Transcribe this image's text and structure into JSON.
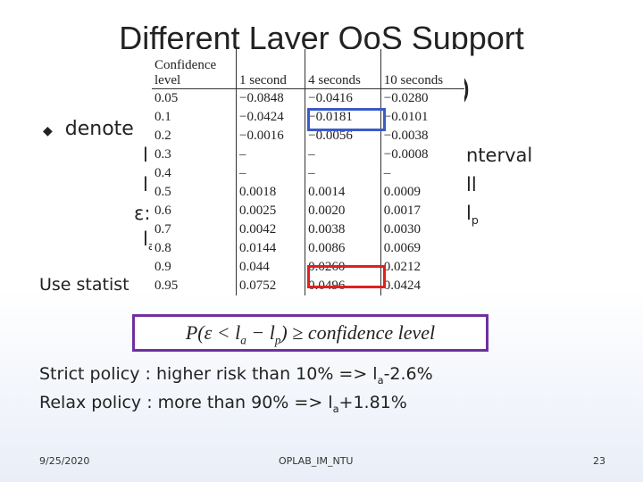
{
  "slide": {
    "title": "Different Layer QoS Support",
    "title_tail": ")",
    "bullet": "denote",
    "fragments": [
      "l",
      "nterval",
      "l",
      "ll",
      "ε:",
      "l",
      "p",
      "l",
      "a"
    ],
    "use_text": "Use statist",
    "table": {
      "header": [
        "Confidence level",
        "1 second",
        "4 seconds",
        "10 seconds"
      ],
      "rows": [
        [
          "0.05",
          "−0.0848",
          "−0.0416",
          "−0.0280"
        ],
        [
          "0.1",
          "−0.0424",
          "−0.0181",
          "−0.0101"
        ],
        [
          "0.2",
          "−0.0016",
          "−0.0056",
          "−0.0038"
        ],
        [
          "0.3",
          "–",
          "–",
          "−0.0008"
        ],
        [
          "0.4",
          "–",
          "–",
          "–"
        ],
        [
          "0.5",
          "0.0018",
          "0.0014",
          "0.0009"
        ],
        [
          "0.6",
          "0.0025",
          "0.0020",
          "0.0017"
        ],
        [
          "0.7",
          "0.0042",
          "0.0038",
          "0.0030"
        ],
        [
          "0.8",
          "0.0144",
          "0.0086",
          "0.0069"
        ],
        [
          "0.9",
          "0.044",
          "0.0260",
          "0.0212"
        ],
        [
          "0.95",
          "0.0752",
          "0.0496",
          "0.0424"
        ]
      ]
    },
    "formula": [
      "P(ε < l",
      "a",
      " − l",
      "p",
      ") ≥ confidence   level"
    ],
    "strict": [
      "Strict policy : higher risk than 10% => l",
      "a",
      "-2.6%"
    ],
    "relax": [
      "Relax policy : more than 90% => l",
      "a",
      "+1.81%"
    ],
    "footer": {
      "date": "9/25/2020",
      "center": "OPLAB_IM_NTU",
      "page": "23"
    }
  }
}
